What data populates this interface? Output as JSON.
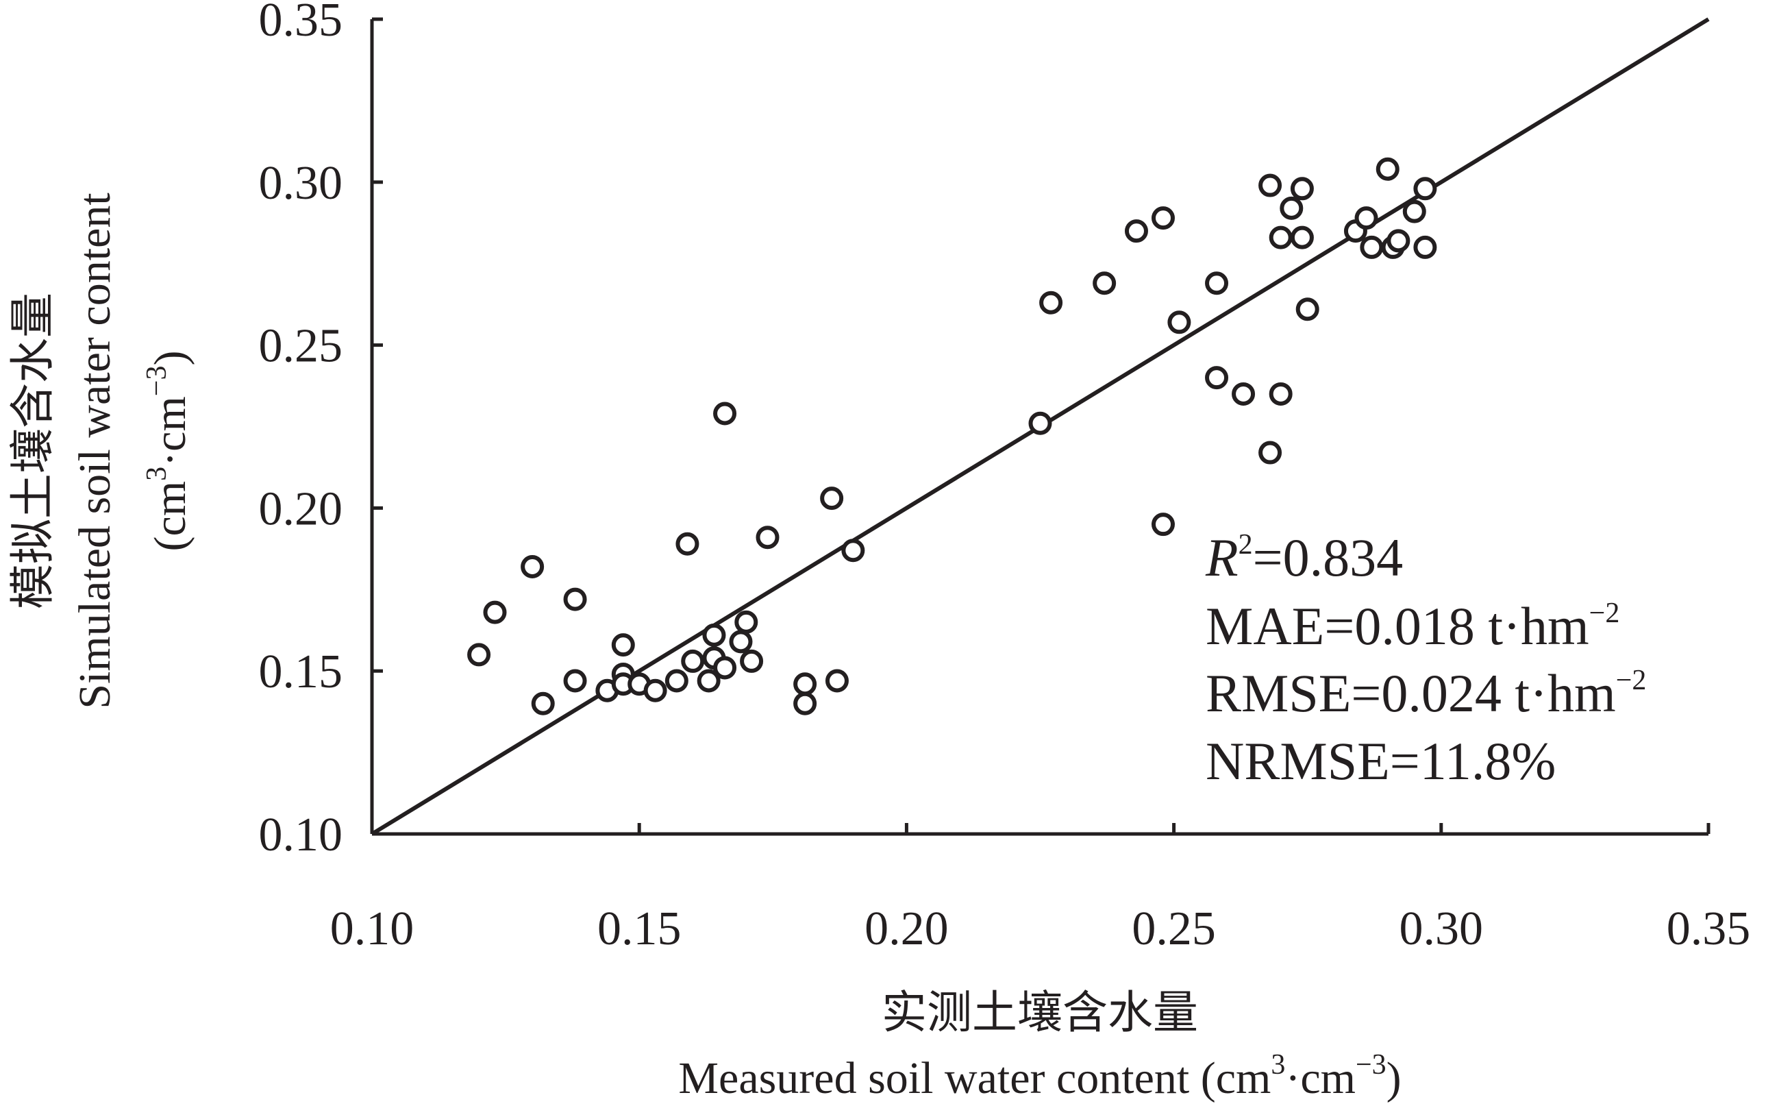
{
  "chart_data": {
    "type": "scatter",
    "xlabel_cn": "实测土壤含水量",
    "xlabel_en": "Measured soil water content (cm",
    "ylabel_cn": "模拟土壤含水量",
    "ylabel_en": "Simulated soil water content",
    "ylabel_unit": "(cm",
    "unit_sup1": "3",
    "unit_mid": "·cm",
    "unit_sup2": "−3",
    "unit_end": ")",
    "xlim": [
      0.1,
      0.35
    ],
    "ylim": [
      0.1,
      0.35
    ],
    "xticks": [
      "0.10",
      "0.15",
      "0.20",
      "0.25",
      "0.30",
      "0.35"
    ],
    "yticks": [
      "0.10",
      "0.15",
      "0.20",
      "0.25",
      "0.30",
      "0.35"
    ],
    "reference_line": "1:1",
    "annotations": {
      "r2_label": "R",
      "r2_sup": "2",
      "r2_value": "=0.834",
      "mae": "MAE=0.018 t·hm",
      "rmse": "RMSE=0.024 t·hm",
      "unit_sup": "−2",
      "nrmse": "NRMSE=11.8%"
    },
    "points": [
      [
        0.12,
        0.155
      ],
      [
        0.123,
        0.168
      ],
      [
        0.13,
        0.182
      ],
      [
        0.132,
        0.14
      ],
      [
        0.138,
        0.172
      ],
      [
        0.138,
        0.147
      ],
      [
        0.144,
        0.144
      ],
      [
        0.147,
        0.158
      ],
      [
        0.147,
        0.149
      ],
      [
        0.147,
        0.146
      ],
      [
        0.15,
        0.146
      ],
      [
        0.153,
        0.144
      ],
      [
        0.157,
        0.147
      ],
      [
        0.159,
        0.189
      ],
      [
        0.16,
        0.153
      ],
      [
        0.163,
        0.147
      ],
      [
        0.164,
        0.154
      ],
      [
        0.164,
        0.161
      ],
      [
        0.166,
        0.151
      ],
      [
        0.166,
        0.229
      ],
      [
        0.169,
        0.159
      ],
      [
        0.17,
        0.165
      ],
      [
        0.171,
        0.153
      ],
      [
        0.174,
        0.191
      ],
      [
        0.181,
        0.146
      ],
      [
        0.181,
        0.14
      ],
      [
        0.186,
        0.203
      ],
      [
        0.187,
        0.147
      ],
      [
        0.19,
        0.187
      ],
      [
        0.225,
        0.226
      ],
      [
        0.227,
        0.263
      ],
      [
        0.237,
        0.269
      ],
      [
        0.243,
        0.285
      ],
      [
        0.248,
        0.289
      ],
      [
        0.248,
        0.195
      ],
      [
        0.251,
        0.257
      ],
      [
        0.258,
        0.269
      ],
      [
        0.258,
        0.24
      ],
      [
        0.263,
        0.235
      ],
      [
        0.27,
        0.235
      ],
      [
        0.268,
        0.299
      ],
      [
        0.268,
        0.217
      ],
      [
        0.27,
        0.283
      ],
      [
        0.272,
        0.292
      ],
      [
        0.274,
        0.298
      ],
      [
        0.274,
        0.283
      ],
      [
        0.275,
        0.261
      ],
      [
        0.284,
        0.285
      ],
      [
        0.286,
        0.289
      ],
      [
        0.287,
        0.28
      ],
      [
        0.29,
        0.304
      ],
      [
        0.291,
        0.28
      ],
      [
        0.292,
        0.282
      ],
      [
        0.295,
        0.291
      ],
      [
        0.297,
        0.298
      ],
      [
        0.297,
        0.28
      ]
    ]
  }
}
